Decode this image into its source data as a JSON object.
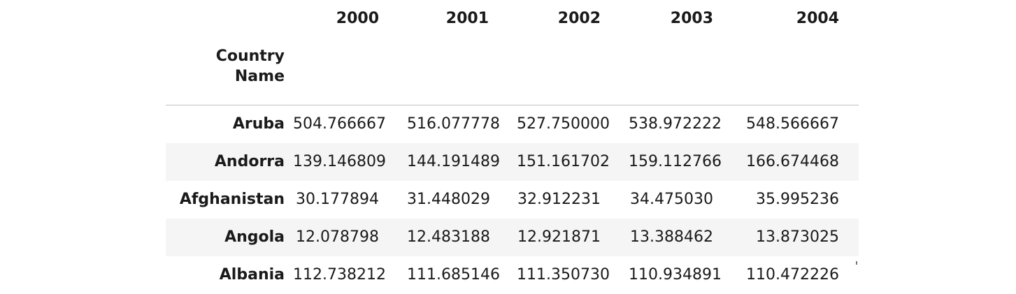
{
  "table": {
    "columns": [
      "2000",
      "2001",
      "2002",
      "2003",
      "2004"
    ],
    "index_name": "Country Name",
    "rows": [
      {
        "country": "Aruba",
        "values": [
          "504.766667",
          "516.077778",
          "527.750000",
          "538.972222",
          "548.566667"
        ]
      },
      {
        "country": "Andorra",
        "values": [
          "139.146809",
          "144.191489",
          "151.161702",
          "159.112766",
          "166.674468"
        ]
      },
      {
        "country": "Afghanistan",
        "values": [
          "30.177894",
          "31.448029",
          "32.912231",
          "34.475030",
          "35.995236"
        ]
      },
      {
        "country": "Angola",
        "values": [
          "12.078798",
          "12.483188",
          "12.921871",
          "13.388462",
          "13.873025"
        ]
      },
      {
        "country": "Albania",
        "values": [
          "112.738212",
          "111.685146",
          "111.350730",
          "110.934891",
          "110.472226"
        ]
      }
    ]
  }
}
